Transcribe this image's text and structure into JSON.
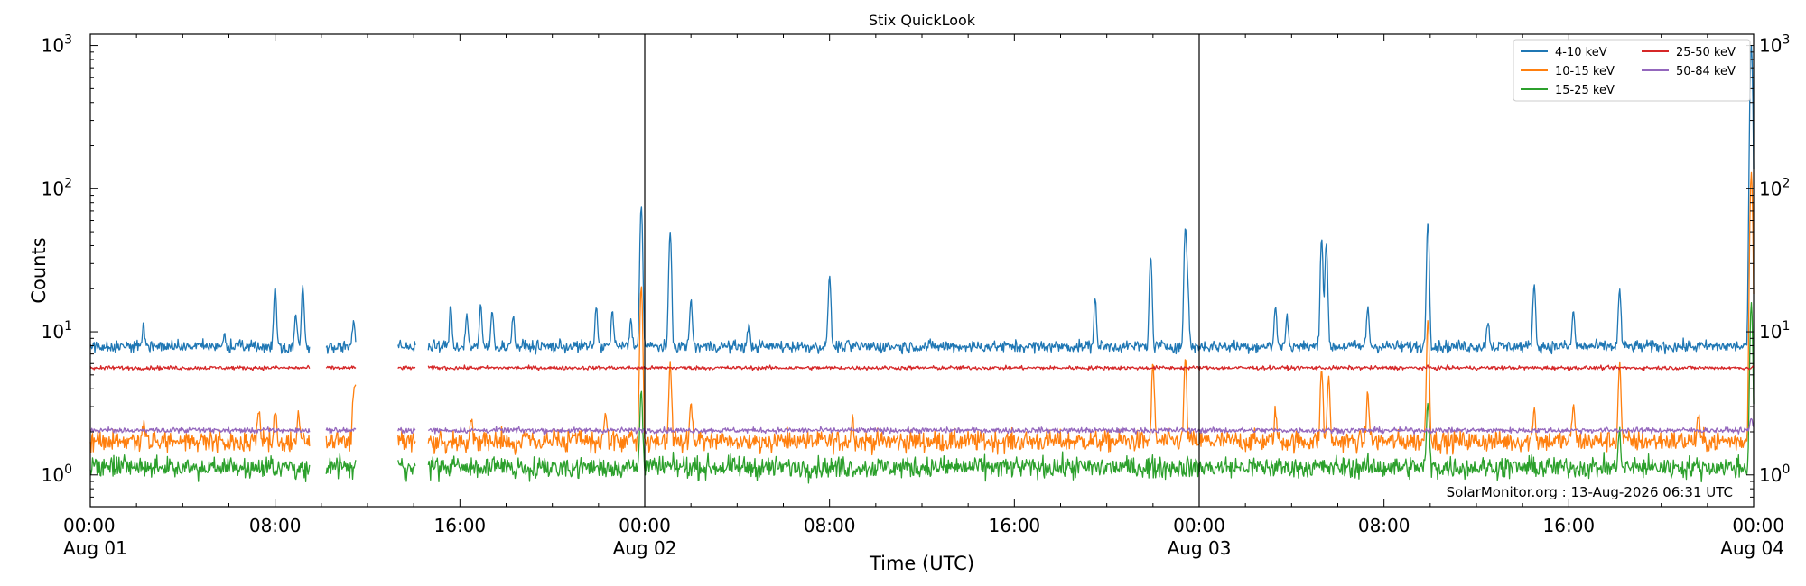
{
  "chart_data": {
    "type": "line",
    "title": "Stix QuickLook",
    "xlabel": "Time (UTC)",
    "ylabel": "Counts",
    "yscale": "log",
    "ylim": [
      0.6,
      1200
    ],
    "xlim_hours": [
      0,
      72
    ],
    "x_ticks": [
      {
        "hour": 0,
        "time": "00:00",
        "date": "Aug 01"
      },
      {
        "hour": 8,
        "time": "08:00",
        "date": ""
      },
      {
        "hour": 16,
        "time": "16:00",
        "date": ""
      },
      {
        "hour": 24,
        "time": "00:00",
        "date": "Aug 02"
      },
      {
        "hour": 32,
        "time": "08:00",
        "date": ""
      },
      {
        "hour": 40,
        "time": "16:00",
        "date": ""
      },
      {
        "hour": 48,
        "time": "00:00",
        "date": "Aug 03"
      },
      {
        "hour": 56,
        "time": "08:00",
        "date": ""
      },
      {
        "hour": 64,
        "time": "16:00",
        "date": ""
      },
      {
        "hour": 72,
        "time": "00:00",
        "date": "Aug 04"
      }
    ],
    "y_ticks": [
      {
        "value": 1,
        "base": "10",
        "exp": "0"
      },
      {
        "value": 10,
        "base": "10",
        "exp": "1"
      },
      {
        "value": 100,
        "base": "10",
        "exp": "2"
      },
      {
        "value": 1000,
        "base": "10",
        "exp": "3"
      }
    ],
    "day_boundaries_hours": [
      24,
      48
    ],
    "data_gaps_hours": [
      [
        9.5,
        10.2
      ],
      [
        11.5,
        13.3
      ],
      [
        14.1,
        14.6
      ]
    ],
    "grid": false,
    "legend_position": "top-right",
    "legend_columns": 2,
    "series": [
      {
        "name": "4-10 keV",
        "color": "#1f77b4",
        "baseline": 7.9,
        "noise": 0.04,
        "peaks": [
          [
            2.3,
            11.5
          ],
          [
            5.8,
            9.5
          ],
          [
            8.0,
            21
          ],
          [
            8.9,
            13
          ],
          [
            9.2,
            21
          ],
          [
            11.4,
            11.5
          ],
          [
            15.6,
            15
          ],
          [
            16.3,
            13
          ],
          [
            16.9,
            15
          ],
          [
            17.4,
            14
          ],
          [
            18.3,
            13
          ],
          [
            21.9,
            15
          ],
          [
            22.6,
            14
          ],
          [
            23.4,
            12
          ],
          [
            23.85,
            75
          ],
          [
            25.1,
            50
          ],
          [
            26.0,
            17
          ],
          [
            28.5,
            11
          ],
          [
            32.0,
            25
          ],
          [
            43.5,
            17
          ],
          [
            45.9,
            34
          ],
          [
            47.5,
            20
          ],
          [
            47.4,
            52
          ],
          [
            51.3,
            15
          ],
          [
            51.8,
            13
          ],
          [
            53.3,
            45
          ],
          [
            53.5,
            42
          ],
          [
            55.3,
            15
          ],
          [
            57.9,
            58
          ],
          [
            60.5,
            12
          ],
          [
            62.5,
            22
          ],
          [
            64.2,
            14
          ],
          [
            66.2,
            20
          ],
          [
            71.9,
            1000
          ]
        ]
      },
      {
        "name": "10-15 keV",
        "color": "#ff7f0e",
        "baseline": 1.72,
        "noise": 0.07,
        "peaks": [
          [
            2.3,
            2.4
          ],
          [
            7.3,
            2.7
          ],
          [
            8.0,
            2.8
          ],
          [
            9.0,
            2.8
          ],
          [
            11.4,
            3.5
          ],
          [
            11.5,
            4.2
          ],
          [
            16.5,
            2.5
          ],
          [
            22.3,
            2.7
          ],
          [
            23.85,
            21
          ],
          [
            25.1,
            6
          ],
          [
            26.0,
            3.2
          ],
          [
            33.0,
            2.5
          ],
          [
            46.0,
            6
          ],
          [
            47.4,
            6.5
          ],
          [
            51.3,
            2.8
          ],
          [
            53.3,
            5.5
          ],
          [
            53.6,
            4.8
          ],
          [
            55.3,
            3.8
          ],
          [
            57.9,
            12
          ],
          [
            62.5,
            3.0
          ],
          [
            64.2,
            3.2
          ],
          [
            66.2,
            6
          ],
          [
            69.6,
            2.6
          ],
          [
            71.9,
            130
          ]
        ]
      },
      {
        "name": "15-25 keV",
        "color": "#2ca02c",
        "baseline": 1.13,
        "noise": 0.07,
        "peaks": [
          [
            23.85,
            4.0
          ],
          [
            57.9,
            3.2
          ],
          [
            66.2,
            2.0
          ],
          [
            71.9,
            16
          ]
        ]
      },
      {
        "name": "25-50 keV",
        "color": "#d62728",
        "baseline": 5.6,
        "noise": 0.013,
        "peaks": []
      },
      {
        "name": "50-84 keV",
        "color": "#9467bd",
        "baseline": 2.05,
        "noise": 0.018,
        "peaks": [
          [
            71.9,
            2.5
          ]
        ]
      }
    ],
    "annotation": "SolarMonitor.org : 13-Aug-2026 06:31 UTC"
  }
}
